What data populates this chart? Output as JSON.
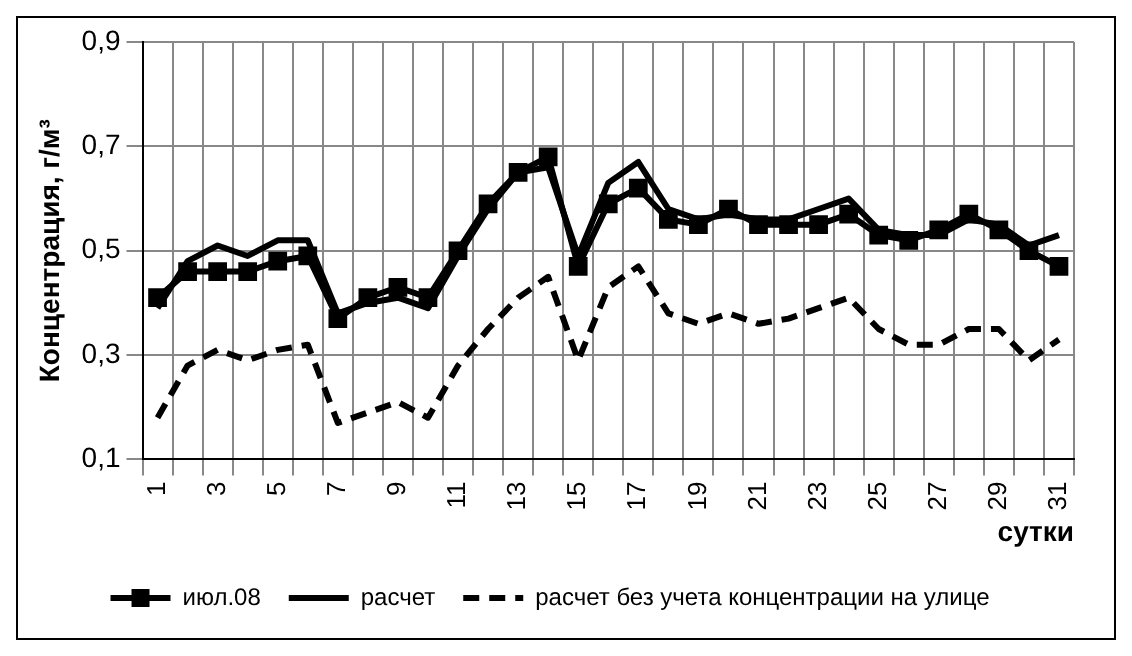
{
  "chart_data": {
    "type": "line",
    "ylabel": "Концентрация, г/м³",
    "xlabel": "сутки",
    "categories": [
      "1",
      null,
      "3",
      null,
      "5",
      null,
      "7",
      null,
      "9",
      null,
      "11",
      null,
      "13",
      null,
      "15",
      null,
      "17",
      null,
      "19",
      null,
      "21",
      null,
      "23",
      null,
      "25",
      null,
      "27",
      null,
      "29",
      null,
      "31"
    ],
    "series": [
      {
        "name": "июл.08",
        "color": "#000000",
        "marker": "square",
        "line_style": "solid",
        "values": [
          0.41,
          0.46,
          0.46,
          0.46,
          0.48,
          0.49,
          0.37,
          0.41,
          0.43,
          0.41,
          0.5,
          0.59,
          0.65,
          0.68,
          0.47,
          0.59,
          0.62,
          0.56,
          0.55,
          0.58,
          0.55,
          0.55,
          0.55,
          0.57,
          0.53,
          0.52,
          0.54,
          0.57,
          0.54,
          0.5,
          0.47
        ]
      },
      {
        "name": "расчет",
        "color": "#000000",
        "marker": "none",
        "line_style": "solid",
        "values": [
          0.39,
          0.48,
          0.51,
          0.49,
          0.52,
          0.52,
          0.38,
          0.4,
          0.41,
          0.39,
          0.49,
          0.58,
          0.65,
          0.66,
          0.49,
          0.63,
          0.67,
          0.58,
          0.56,
          0.57,
          0.56,
          0.56,
          0.58,
          0.6,
          0.54,
          0.53,
          0.53,
          0.56,
          0.55,
          0.51,
          0.53
        ]
      },
      {
        "name": "расчет без учета концентрации на улице",
        "color": "#000000",
        "marker": "none",
        "line_style": "dashed",
        "values": [
          0.18,
          0.28,
          0.31,
          0.29,
          0.31,
          0.32,
          0.17,
          0.19,
          0.21,
          0.18,
          0.28,
          0.35,
          0.41,
          0.45,
          0.29,
          0.43,
          0.47,
          0.38,
          0.36,
          0.38,
          0.36,
          0.37,
          0.39,
          0.41,
          0.35,
          0.32,
          0.32,
          0.35,
          0.35,
          0.29,
          0.33
        ]
      }
    ],
    "ylim": [
      0.1,
      0.9
    ],
    "yticks": [
      {
        "value": 0.1,
        "label": "0,1"
      },
      {
        "value": 0.3,
        "label": "0,3"
      },
      {
        "value": 0.5,
        "label": "0,5"
      },
      {
        "value": 0.7,
        "label": "0,7"
      },
      {
        "value": 0.9,
        "label": "0,9"
      }
    ],
    "grid": true,
    "legend": "bottom"
  }
}
